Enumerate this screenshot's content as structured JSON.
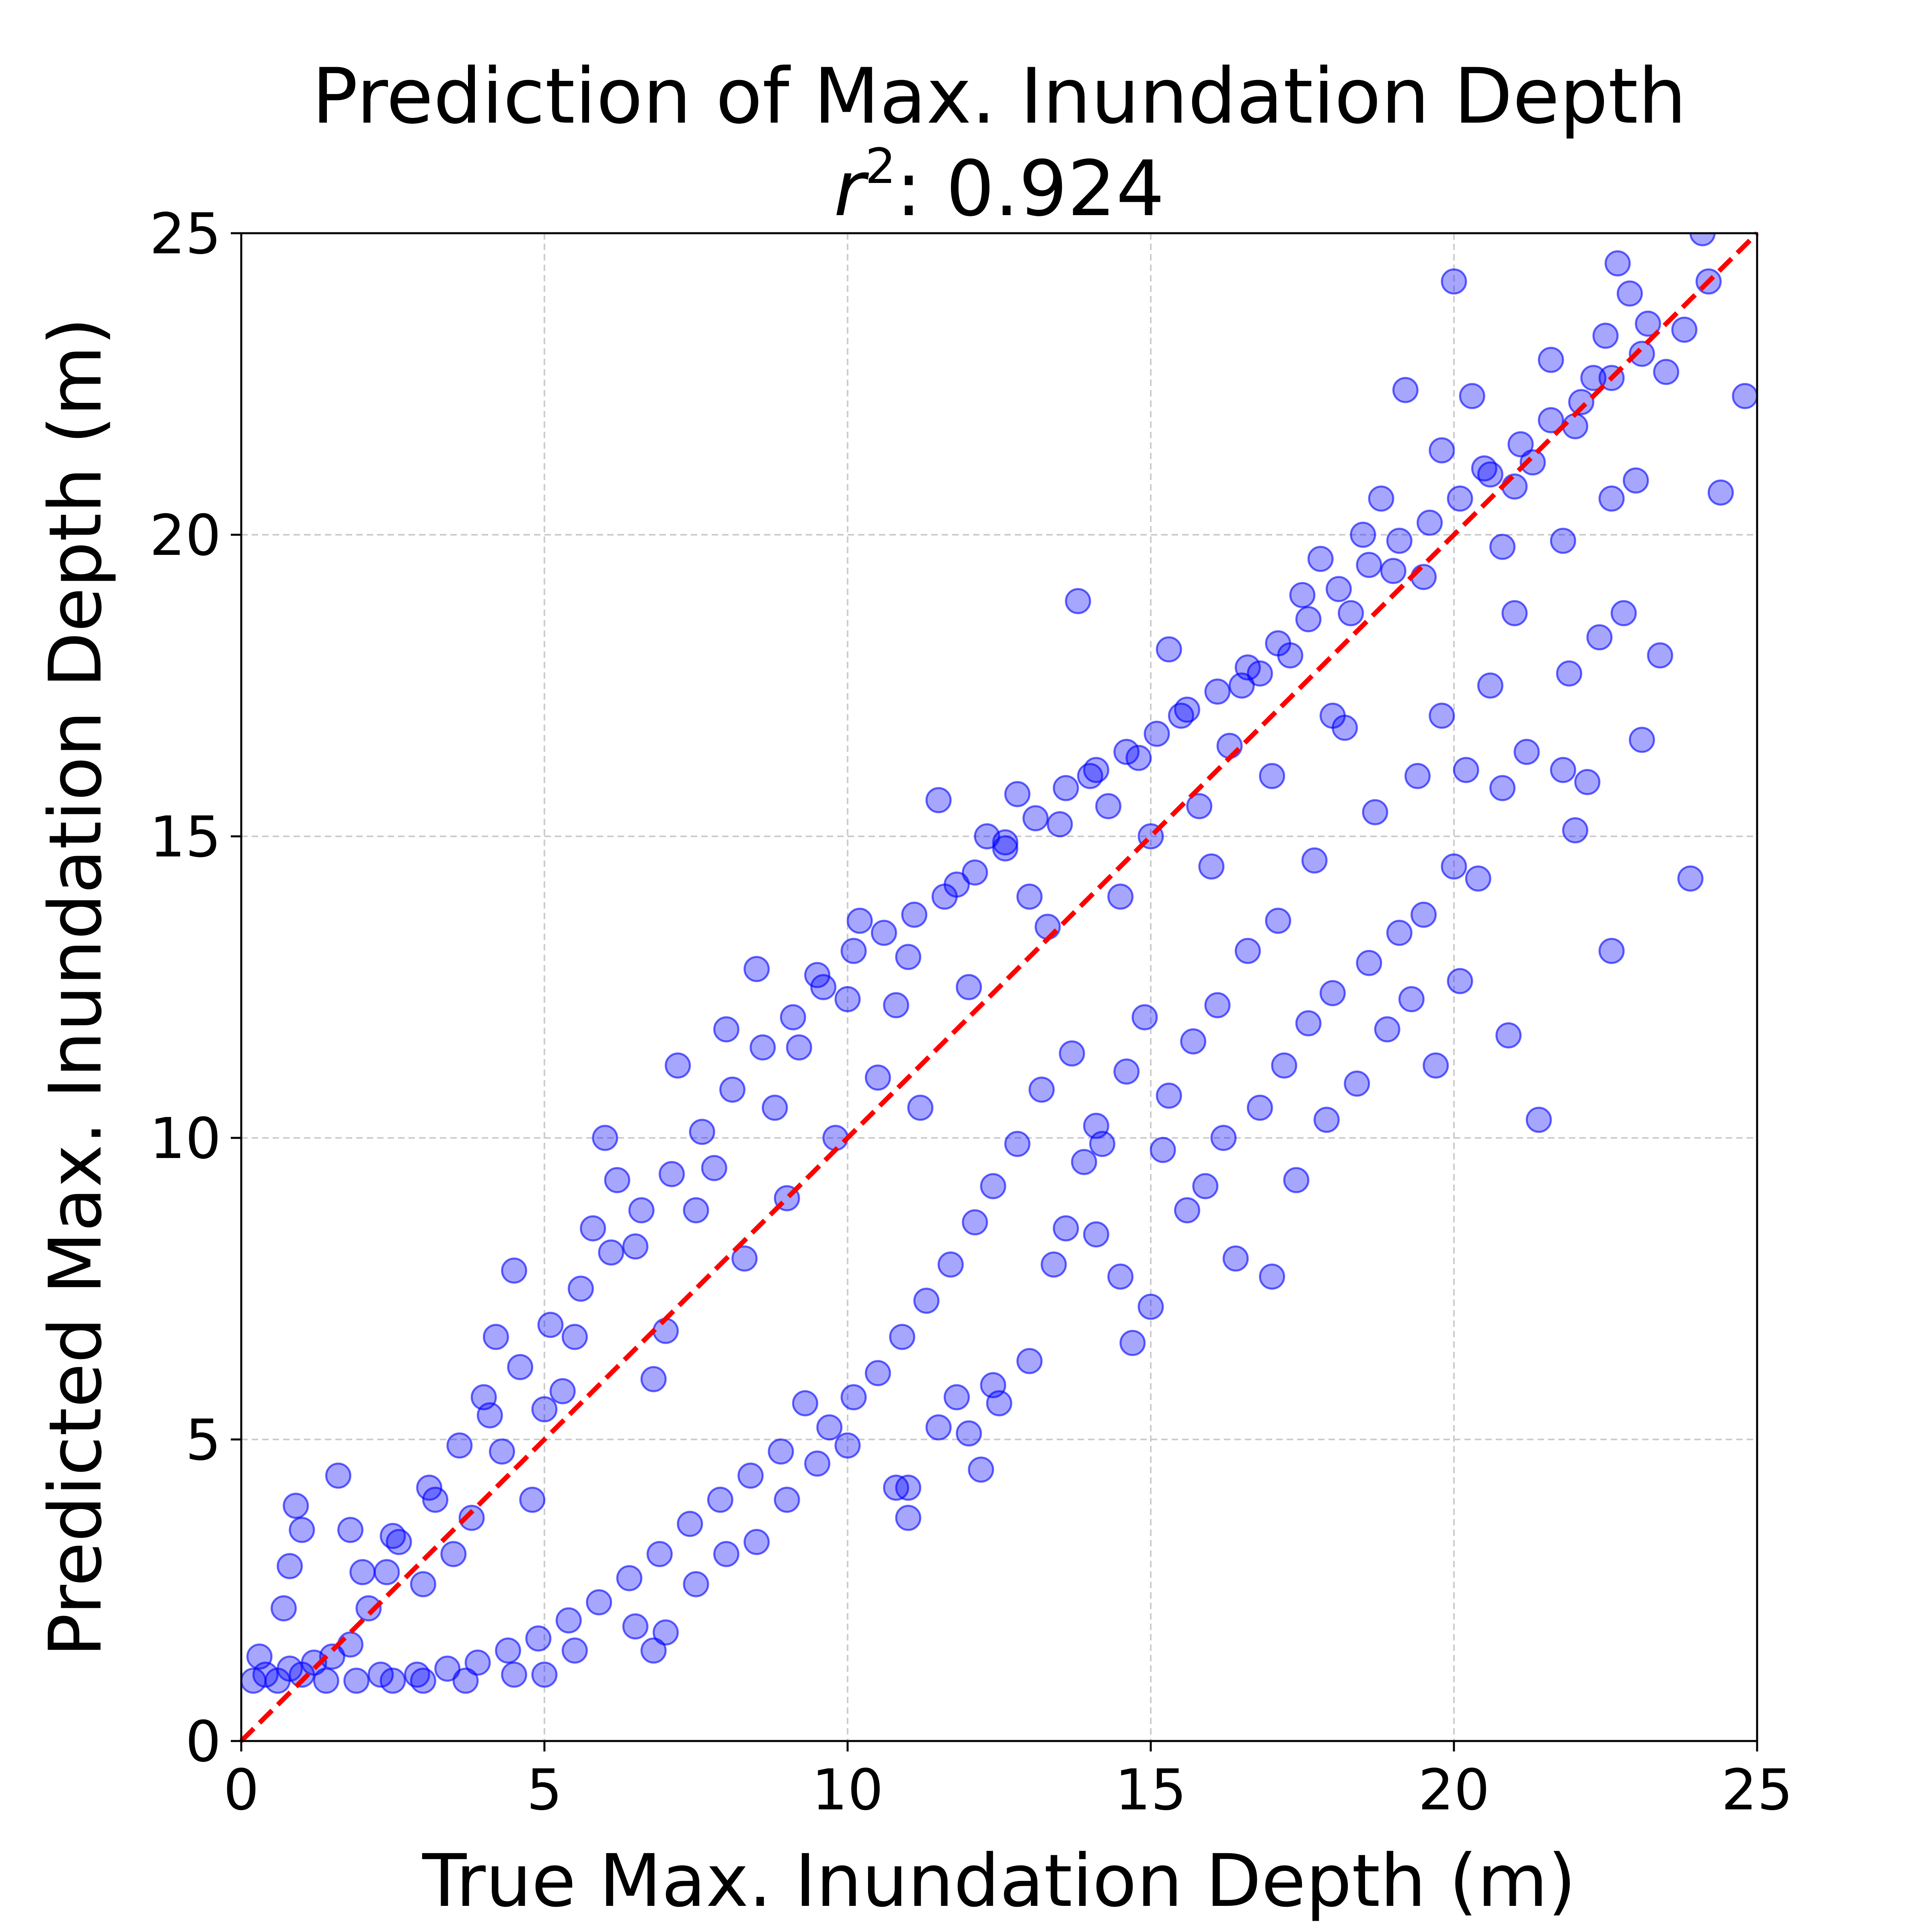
{
  "chart_data": {
    "type": "scatter",
    "title": "Prediction of Max. Inundation Depth",
    "subtitle_symbol": "r",
    "subtitle_superscript": "2",
    "subtitle_value": ": 0.924",
    "xlabel": "True Max. Inundation Depth (m)",
    "ylabel": "Predicted Max. Inundation Depth (m)",
    "xlim": [
      0,
      25
    ],
    "ylim": [
      0,
      25
    ],
    "xticks": [
      "0",
      "5",
      "10",
      "15",
      "20",
      "25"
    ],
    "yticks": [
      "0",
      "5",
      "10",
      "15",
      "20",
      "25"
    ],
    "grid": true,
    "point_color": "#0000ff",
    "point_alpha": 0.35,
    "reference_line": {
      "from": [
        0,
        0
      ],
      "to": [
        25,
        25
      ],
      "color": "#ff0000",
      "style": "dashed"
    },
    "points": [
      [
        0.2,
        1.0
      ],
      [
        0.4,
        1.1
      ],
      [
        0.6,
        1.0
      ],
      [
        0.8,
        1.2
      ],
      [
        1.0,
        1.1
      ],
      [
        1.2,
        1.3
      ],
      [
        1.5,
        1.4
      ],
      [
        1.8,
        1.6
      ],
      [
        0.3,
        1.4
      ],
      [
        0.7,
        2.2
      ],
      [
        0.9,
        3.9
      ],
      [
        1.0,
        3.5
      ],
      [
        0.8,
        2.9
      ],
      [
        1.6,
        4.4
      ],
      [
        1.8,
        3.5
      ],
      [
        2.1,
        2.2
      ],
      [
        2.4,
        2.8
      ],
      [
        2.6,
        3.3
      ],
      [
        3.0,
        2.6
      ],
      [
        3.2,
        4.0
      ],
      [
        3.5,
        3.1
      ],
      [
        3.8,
        3.7
      ],
      [
        4.0,
        5.7
      ],
      [
        4.2,
        6.7
      ],
      [
        4.5,
        7.8
      ],
      [
        4.3,
        4.8
      ],
      [
        4.8,
        4.0
      ],
      [
        5.0,
        5.5
      ],
      [
        5.3,
        5.8
      ],
      [
        5.5,
        6.7
      ],
      [
        5.8,
        8.5
      ],
      [
        6.0,
        10.0
      ],
      [
        6.2,
        9.3
      ],
      [
        6.5,
        8.2
      ],
      [
        6.8,
        6.0
      ],
      [
        7.0,
        6.8
      ],
      [
        7.2,
        11.2
      ],
      [
        7.5,
        8.8
      ],
      [
        7.8,
        9.5
      ],
      [
        8.0,
        11.8
      ],
      [
        8.3,
        8.0
      ],
      [
        8.5,
        12.8
      ],
      [
        8.8,
        10.5
      ],
      [
        9.0,
        9.0
      ],
      [
        9.2,
        11.5
      ],
      [
        9.5,
        12.7
      ],
      [
        9.8,
        10.0
      ],
      [
        10.0,
        12.3
      ],
      [
        10.2,
        13.6
      ],
      [
        10.5,
        11.0
      ],
      [
        10.8,
        12.2
      ],
      [
        11.0,
        13.0
      ],
      [
        11.2,
        10.5
      ],
      [
        11.5,
        15.6
      ],
      [
        11.8,
        14.2
      ],
      [
        12.0,
        12.5
      ],
      [
        12.3,
        15.0
      ],
      [
        12.6,
        14.8
      ],
      [
        12.8,
        15.7
      ],
      [
        13.0,
        14.0
      ],
      [
        13.3,
        13.5
      ],
      [
        13.5,
        15.2
      ],
      [
        13.8,
        18.9
      ],
      [
        14.0,
        16.0
      ],
      [
        14.3,
        15.5
      ],
      [
        14.5,
        14.0
      ],
      [
        14.8,
        16.3
      ],
      [
        15.0,
        15.0
      ],
      [
        15.3,
        18.1
      ],
      [
        15.5,
        17.0
      ],
      [
        15.8,
        15.5
      ],
      [
        16.0,
        14.5
      ],
      [
        16.3,
        16.5
      ],
      [
        16.5,
        17.5
      ],
      [
        16.8,
        17.7
      ],
      [
        17.0,
        16.0
      ],
      [
        17.3,
        18.0
      ],
      [
        17.5,
        19.0
      ],
      [
        17.8,
        19.6
      ],
      [
        18.0,
        17.0
      ],
      [
        18.3,
        18.7
      ],
      [
        18.5,
        20.0
      ],
      [
        18.8,
        20.6
      ],
      [
        19.0,
        19.4
      ],
      [
        19.2,
        22.4
      ],
      [
        19.5,
        19.3
      ],
      [
        19.8,
        21.4
      ],
      [
        20.0,
        24.2
      ],
      [
        20.3,
        22.3
      ],
      [
        20.5,
        21.1
      ],
      [
        20.8,
        19.8
      ],
      [
        21.0,
        20.8
      ],
      [
        21.3,
        21.2
      ],
      [
        21.6,
        22.9
      ],
      [
        21.8,
        19.9
      ],
      [
        22.0,
        21.8
      ],
      [
        22.3,
        22.6
      ],
      [
        22.5,
        23.3
      ],
      [
        22.7,
        24.5
      ],
      [
        22.9,
        24.0
      ],
      [
        23.2,
        23.5
      ],
      [
        23.5,
        22.7
      ],
      [
        23.8,
        23.4
      ],
      [
        24.2,
        24.2
      ],
      [
        24.1,
        25.0
      ],
      [
        24.8,
        22.3
      ],
      [
        24.4,
        20.7
      ],
      [
        23.0,
        20.9
      ],
      [
        22.8,
        18.7
      ],
      [
        23.1,
        16.6
      ],
      [
        23.4,
        18.0
      ],
      [
        23.9,
        14.3
      ],
      [
        22.6,
        13.1
      ],
      [
        22.0,
        15.1
      ],
      [
        21.4,
        10.3
      ],
      [
        20.9,
        11.7
      ],
      [
        20.1,
        12.6
      ],
      [
        19.7,
        11.2
      ],
      [
        19.3,
        12.3
      ],
      [
        18.9,
        11.8
      ],
      [
        18.4,
        10.9
      ],
      [
        17.9,
        10.3
      ],
      [
        17.4,
        9.3
      ],
      [
        17.0,
        7.7
      ],
      [
        16.4,
        8.0
      ],
      [
        15.9,
        9.2
      ],
      [
        15.0,
        7.2
      ],
      [
        14.7,
        6.6
      ],
      [
        14.5,
        7.7
      ],
      [
        14.1,
        8.4
      ],
      [
        13.6,
        8.5
      ],
      [
        13.0,
        6.3
      ],
      [
        12.5,
        5.6
      ],
      [
        12.0,
        5.1
      ],
      [
        11.5,
        5.2
      ],
      [
        11.0,
        4.2
      ],
      [
        11.0,
        3.7
      ],
      [
        10.8,
        4.2
      ],
      [
        10.0,
        4.9
      ],
      [
        9.5,
        4.6
      ],
      [
        9.0,
        4.0
      ],
      [
        8.5,
        3.3
      ],
      [
        8.0,
        3.1
      ],
      [
        7.5,
        2.6
      ],
      [
        7.0,
        1.8
      ],
      [
        6.8,
        1.5
      ],
      [
        6.5,
        1.9
      ],
      [
        5.5,
        1.5
      ],
      [
        5.0,
        1.1
      ],
      [
        4.5,
        1.1
      ],
      [
        3.7,
        1.0
      ],
      [
        3.0,
        1.0
      ],
      [
        2.5,
        1.0
      ],
      [
        12.4,
        5.9
      ],
      [
        12.2,
        4.5
      ],
      [
        11.8,
        5.7
      ],
      [
        13.4,
        7.9
      ],
      [
        13.9,
        9.6
      ],
      [
        14.2,
        9.9
      ],
      [
        15.2,
        9.8
      ],
      [
        15.6,
        8.8
      ],
      [
        16.2,
        10.0
      ],
      [
        16.8,
        10.5
      ],
      [
        17.2,
        11.2
      ],
      [
        17.6,
        11.9
      ],
      [
        18.0,
        12.4
      ],
      [
        18.6,
        12.9
      ],
      [
        19.1,
        13.4
      ],
      [
        19.5,
        13.7
      ],
      [
        20.0,
        14.5
      ],
      [
        20.4,
        14.3
      ],
      [
        20.8,
        15.8
      ],
      [
        21.2,
        16.4
      ],
      [
        21.8,
        16.1
      ],
      [
        22.2,
        15.9
      ],
      [
        21.9,
        17.7
      ],
      [
        22.4,
        18.3
      ],
      [
        22.6,
        20.6
      ],
      [
        21.0,
        18.7
      ],
      [
        20.6,
        17.5
      ],
      [
        20.2,
        16.1
      ],
      [
        19.8,
        17.0
      ],
      [
        19.4,
        16.0
      ],
      [
        18.7,
        15.4
      ],
      [
        18.2,
        16.8
      ],
      [
        17.7,
        14.6
      ],
      [
        17.1,
        13.6
      ],
      [
        16.6,
        13.1
      ],
      [
        16.1,
        12.2
      ],
      [
        15.7,
        11.6
      ],
      [
        15.3,
        10.7
      ],
      [
        14.9,
        12.0
      ],
      [
        14.6,
        11.1
      ],
      [
        14.1,
        10.2
      ],
      [
        13.7,
        11.4
      ],
      [
        13.2,
        10.8
      ],
      [
        12.8,
        9.9
      ],
      [
        12.4,
        9.2
      ],
      [
        12.1,
        8.6
      ],
      [
        11.7,
        7.9
      ],
      [
        11.3,
        7.3
      ],
      [
        10.9,
        6.7
      ],
      [
        10.5,
        6.1
      ],
      [
        10.1,
        5.7
      ],
      [
        9.7,
        5.2
      ],
      [
        9.3,
        5.6
      ],
      [
        8.9,
        4.8
      ],
      [
        8.4,
        4.4
      ],
      [
        7.9,
        4.0
      ],
      [
        7.4,
        3.6
      ],
      [
        6.9,
        3.1
      ],
      [
        6.4,
        2.7
      ],
      [
        5.9,
        2.3
      ],
      [
        5.4,
        2.0
      ],
      [
        4.9,
        1.7
      ],
      [
        4.4,
        1.5
      ],
      [
        3.9,
        1.3
      ],
      [
        3.4,
        1.2
      ],
      [
        2.9,
        1.1
      ],
      [
        2.3,
        1.1
      ],
      [
        1.9,
        1.0
      ],
      [
        1.4,
        1.0
      ],
      [
        2.0,
        2.8
      ],
      [
        2.5,
        3.4
      ],
      [
        3.1,
        4.2
      ],
      [
        3.6,
        4.9
      ],
      [
        4.1,
        5.4
      ],
      [
        4.6,
        6.2
      ],
      [
        5.1,
        6.9
      ],
      [
        5.6,
        7.5
      ],
      [
        6.1,
        8.1
      ],
      [
        6.6,
        8.8
      ],
      [
        7.1,
        9.4
      ],
      [
        7.6,
        10.1
      ],
      [
        8.1,
        10.8
      ],
      [
        8.6,
        11.5
      ],
      [
        9.1,
        12.0
      ],
      [
        9.6,
        12.5
      ],
      [
        10.1,
        13.1
      ],
      [
        10.6,
        13.4
      ],
      [
        11.1,
        13.7
      ],
      [
        11.6,
        14.0
      ],
      [
        12.1,
        14.4
      ],
      [
        12.6,
        14.9
      ],
      [
        13.1,
        15.3
      ],
      [
        13.6,
        15.8
      ],
      [
        14.1,
        16.1
      ],
      [
        14.6,
        16.4
      ],
      [
        15.1,
        16.7
      ],
      [
        15.6,
        17.1
      ],
      [
        16.1,
        17.4
      ],
      [
        16.6,
        17.8
      ],
      [
        17.1,
        18.2
      ],
      [
        17.6,
        18.6
      ],
      [
        18.1,
        19.1
      ],
      [
        18.6,
        19.5
      ],
      [
        19.1,
        19.9
      ],
      [
        19.6,
        20.2
      ],
      [
        20.1,
        20.6
      ],
      [
        20.6,
        21.0
      ],
      [
        21.1,
        21.5
      ],
      [
        21.6,
        21.9
      ],
      [
        22.1,
        22.2
      ],
      [
        22.6,
        22.6
      ],
      [
        23.1,
        23.0
      ]
    ]
  }
}
